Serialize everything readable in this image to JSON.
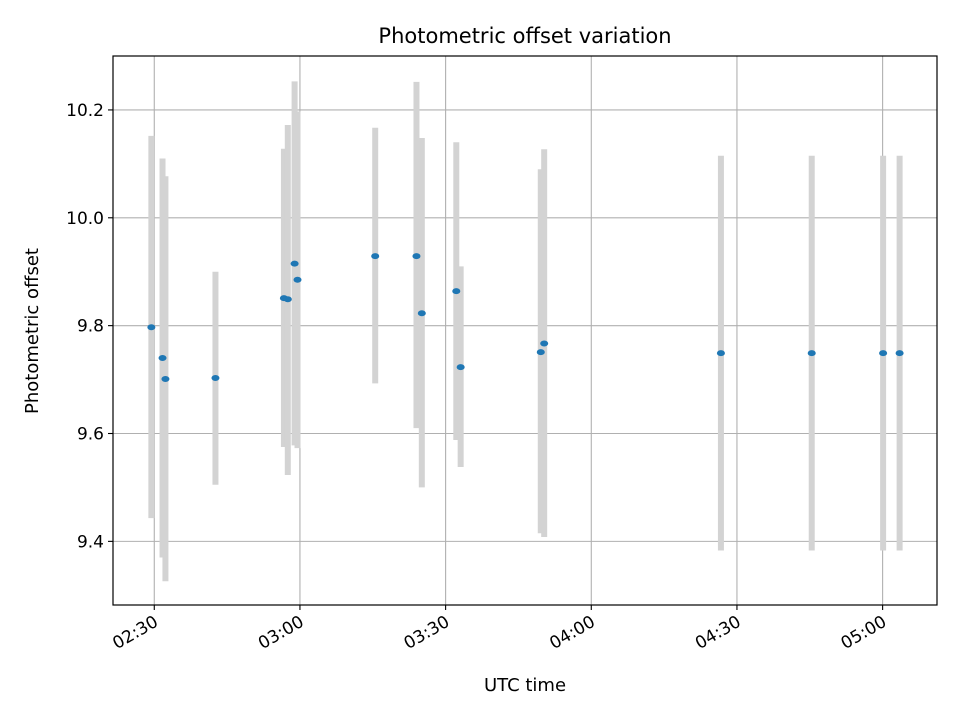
{
  "chart_data": {
    "type": "scatter",
    "title": "Photometric offset variation",
    "xlabel": "UTC time",
    "ylabel": "Photometric offset",
    "x_tick_labels": [
      "02:30",
      "03:00",
      "03:30",
      "04:00",
      "04:30",
      "05:00"
    ],
    "x_tick_minutes": [
      150,
      180,
      210,
      240,
      270,
      300
    ],
    "y_tick_labels": [
      "9.4",
      "9.6",
      "9.8",
      "10.0",
      "10.2"
    ],
    "y_ticks": [
      9.4,
      9.6,
      9.8,
      10.0,
      10.2
    ],
    "xlim_minutes": [
      141.5,
      311.2
    ],
    "ylim": [
      9.282,
      10.3
    ],
    "grid": true,
    "point_color": "#1f77b4",
    "errorbar_color": "#d3d3d3",
    "points": [
      {
        "t_min": 149.4,
        "y": 9.797,
        "ylo": 9.443,
        "yhi": 10.152
      },
      {
        "t_min": 151.7,
        "y": 9.74,
        "ylo": 9.37,
        "yhi": 10.11
      },
      {
        "t_min": 152.3,
        "y": 9.701,
        "ylo": 9.326,
        "yhi": 10.077
      },
      {
        "t_min": 162.6,
        "y": 9.703,
        "ylo": 9.505,
        "yhi": 9.9
      },
      {
        "t_min": 176.7,
        "y": 9.851,
        "ylo": 9.575,
        "yhi": 10.128
      },
      {
        "t_min": 177.5,
        "y": 9.849,
        "ylo": 9.523,
        "yhi": 10.172
      },
      {
        "t_min": 178.9,
        "y": 9.915,
        "ylo": 9.578,
        "yhi": 10.253
      },
      {
        "t_min": 179.5,
        "y": 9.885,
        "ylo": 9.573,
        "yhi": 10.197
      },
      {
        "t_min": 195.5,
        "y": 9.929,
        "ylo": 9.693,
        "yhi": 10.167
      },
      {
        "t_min": 204.0,
        "y": 9.929,
        "ylo": 9.61,
        "yhi": 10.252
      },
      {
        "t_min": 205.1,
        "y": 9.823,
        "ylo": 9.5,
        "yhi": 10.148
      },
      {
        "t_min": 212.2,
        "y": 9.864,
        "ylo": 9.588,
        "yhi": 10.14
      },
      {
        "t_min": 213.1,
        "y": 9.723,
        "ylo": 9.538,
        "yhi": 9.91
      },
      {
        "t_min": 229.6,
        "y": 9.751,
        "ylo": 9.415,
        "yhi": 10.09
      },
      {
        "t_min": 230.3,
        "y": 9.767,
        "ylo": 9.408,
        "yhi": 10.127
      },
      {
        "t_min": 266.7,
        "y": 9.749,
        "ylo": 9.383,
        "yhi": 10.115
      },
      {
        "t_min": 285.4,
        "y": 9.749,
        "ylo": 9.383,
        "yhi": 10.115
      },
      {
        "t_min": 300.1,
        "y": 9.749,
        "ylo": 9.383,
        "yhi": 10.115
      },
      {
        "t_min": 303.5,
        "y": 9.749,
        "ylo": 9.383,
        "yhi": 10.115
      }
    ]
  }
}
